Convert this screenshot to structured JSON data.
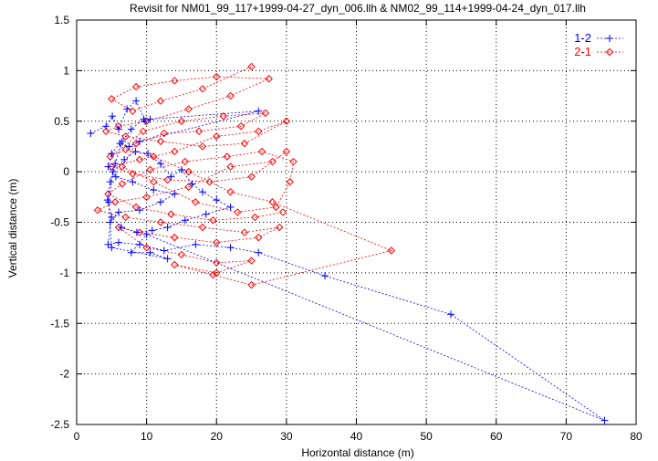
{
  "chart_data": {
    "type": "scatter",
    "title": "Revisit for NM01_99_117+1999-04-27_dyn_006.llh & NM02_99_114+1999-04-24_dyn_017.llh",
    "xlabel": "Horizontal distance (m)",
    "ylabel": "Vertical distance (m)",
    "xlim": [
      0,
      80
    ],
    "ylim": [
      -2.5,
      1.5
    ],
    "x_ticks": [
      "0",
      "10",
      "20",
      "30",
      "40",
      "50",
      "60",
      "70",
      "80"
    ],
    "y_ticks": [
      "-2.5",
      "-2",
      "-1.5",
      "-1",
      "-0.5",
      "0",
      "0.5",
      "1",
      "1.5"
    ],
    "x_tick_values": [
      0,
      10,
      20,
      30,
      40,
      50,
      60,
      70,
      80
    ],
    "y_tick_values": [
      -2.5,
      -2,
      -1.5,
      -1,
      -0.5,
      0,
      0.5,
      1,
      1.5
    ],
    "grid": true,
    "legend_position": "top-right",
    "series": [
      {
        "name": "1-2",
        "color": "#0000ff",
        "marker": "plus",
        "line": "dashed",
        "points": [
          [
            2.0,
            0.38
          ],
          [
            4.2,
            0.45
          ],
          [
            5.1,
            0.55
          ],
          [
            6.0,
            0.42
          ],
          [
            7.2,
            0.62
          ],
          [
            8.5,
            0.7
          ],
          [
            9.8,
            0.5
          ],
          [
            10.5,
            0.52
          ],
          [
            26.0,
            0.6
          ],
          [
            9.0,
            0.3
          ],
          [
            7.5,
            0.25
          ],
          [
            6.2,
            0.28
          ],
          [
            5.0,
            0.18
          ],
          [
            4.5,
            0.05
          ],
          [
            5.6,
            -0.05
          ],
          [
            8.0,
            -0.1
          ],
          [
            11.0,
            -0.18
          ],
          [
            14.0,
            -0.22
          ],
          [
            12.0,
            -0.3
          ],
          [
            9.0,
            -0.38
          ],
          [
            6.0,
            -0.4
          ],
          [
            4.8,
            -0.5
          ],
          [
            4.5,
            -0.72
          ],
          [
            6.0,
            -0.7
          ],
          [
            9.0,
            -0.72
          ],
          [
            12.5,
            -0.78
          ],
          [
            17.0,
            -0.72
          ],
          [
            22.0,
            -0.75
          ],
          [
            26.0,
            -0.8
          ],
          [
            35.5,
            -1.03
          ],
          [
            53.5,
            -1.41
          ],
          [
            75.5,
            -2.46
          ],
          [
            10.0,
            -0.62
          ],
          [
            7.8,
            -0.8
          ],
          [
            10.5,
            -0.8
          ],
          [
            13.0,
            -0.86
          ],
          [
            5.0,
            -0.75
          ],
          [
            4.6,
            -0.3
          ],
          [
            5.2,
            0.0
          ],
          [
            6.8,
            0.12
          ],
          [
            8.4,
            0.2
          ],
          [
            10.2,
            0.18
          ],
          [
            12.0,
            0.08
          ],
          [
            13.5,
            -0.05
          ],
          [
            15.0,
            0.02
          ],
          [
            16.5,
            -0.12
          ],
          [
            18.0,
            -0.2
          ],
          [
            20.0,
            -0.28
          ],
          [
            22.0,
            -0.35
          ],
          [
            18.5,
            -0.42
          ],
          [
            15.5,
            -0.48
          ],
          [
            13.0,
            -0.55
          ],
          [
            10.8,
            -0.58
          ],
          [
            8.6,
            -0.6
          ],
          [
            6.4,
            -0.55
          ],
          [
            5.0,
            -0.45
          ],
          [
            4.4,
            -0.28
          ],
          [
            4.8,
            -0.1
          ],
          [
            5.5,
            0.08
          ],
          [
            6.5,
            0.3
          ],
          [
            7.8,
            0.42
          ],
          [
            9.6,
            0.52
          ]
        ]
      },
      {
        "name": "2-1",
        "color": "#ff0000",
        "marker": "diamond",
        "line": "dashed",
        "points": [
          [
            25.0,
            1.04
          ],
          [
            18.0,
            0.82
          ],
          [
            12.0,
            0.7
          ],
          [
            8.0,
            0.6
          ],
          [
            5.0,
            0.72
          ],
          [
            8.5,
            0.84
          ],
          [
            14.0,
            0.9
          ],
          [
            20.0,
            0.94
          ],
          [
            27.5,
            0.92
          ],
          [
            22.0,
            0.75
          ],
          [
            16.0,
            0.62
          ],
          [
            10.0,
            0.5
          ],
          [
            6.0,
            0.45
          ],
          [
            4.2,
            0.4
          ],
          [
            7.0,
            0.35
          ],
          [
            12.0,
            0.3
          ],
          [
            18.0,
            0.25
          ],
          [
            24.0,
            0.28
          ],
          [
            30.0,
            0.5
          ],
          [
            26.0,
            0.4
          ],
          [
            20.0,
            0.35
          ],
          [
            14.0,
            0.2
          ],
          [
            9.0,
            0.12
          ],
          [
            5.0,
            0.05
          ],
          [
            8.0,
            -0.02
          ],
          [
            13.0,
            -0.08
          ],
          [
            19.0,
            -0.1
          ],
          [
            25.0,
            -0.05
          ],
          [
            30.0,
            0.2
          ],
          [
            28.0,
            0.1
          ],
          [
            22.0,
            0.05
          ],
          [
            16.0,
            -0.15
          ],
          [
            10.0,
            -0.25
          ],
          [
            5.5,
            -0.3
          ],
          [
            3.0,
            -0.38
          ],
          [
            7.0,
            -0.45
          ],
          [
            12.0,
            -0.5
          ],
          [
            18.0,
            -0.55
          ],
          [
            24.0,
            -0.6
          ],
          [
            29.0,
            -0.55
          ],
          [
            26.0,
            -0.65
          ],
          [
            20.0,
            -0.7
          ],
          [
            14.0,
            -0.65
          ],
          [
            9.0,
            -0.6
          ],
          [
            6.0,
            -0.55
          ],
          [
            10.0,
            -0.75
          ],
          [
            15.0,
            -0.82
          ],
          [
            20.0,
            -0.9
          ],
          [
            25.0,
            -0.88
          ],
          [
            20.0,
            -1.0
          ],
          [
            14.0,
            -0.92
          ],
          [
            19.5,
            -1.02
          ],
          [
            25.0,
            -1.12
          ],
          [
            45.0,
            -0.78
          ],
          [
            28.0,
            -0.3
          ],
          [
            22.0,
            -0.2
          ],
          [
            16.0,
            0.0
          ],
          [
            11.0,
            0.15
          ],
          [
            7.0,
            0.22
          ],
          [
            4.8,
            0.15
          ],
          [
            9.5,
            0.4
          ],
          [
            15.0,
            0.5
          ],
          [
            21.0,
            0.55
          ],
          [
            27.0,
            0.58
          ],
          [
            23.5,
            0.45
          ],
          [
            17.5,
            0.4
          ],
          [
            12.5,
            0.38
          ],
          [
            8.5,
            0.28
          ],
          [
            6.5,
            0.05
          ],
          [
            11.0,
            -0.1
          ],
          [
            17.0,
            -0.3
          ],
          [
            23.0,
            -0.4
          ],
          [
            28.5,
            -0.35
          ],
          [
            30.5,
            -0.1
          ],
          [
            31.0,
            0.1
          ],
          [
            26.5,
            0.2
          ],
          [
            21.5,
            0.15
          ],
          [
            15.5,
            0.1
          ],
          [
            10.5,
            0.02
          ],
          [
            6.5,
            -0.12
          ],
          [
            4.5,
            -0.22
          ],
          [
            8.5,
            -0.35
          ],
          [
            13.5,
            -0.42
          ],
          [
            19.5,
            -0.48
          ],
          [
            25.5,
            -0.45
          ],
          [
            29.5,
            -0.4
          ]
        ]
      }
    ]
  }
}
